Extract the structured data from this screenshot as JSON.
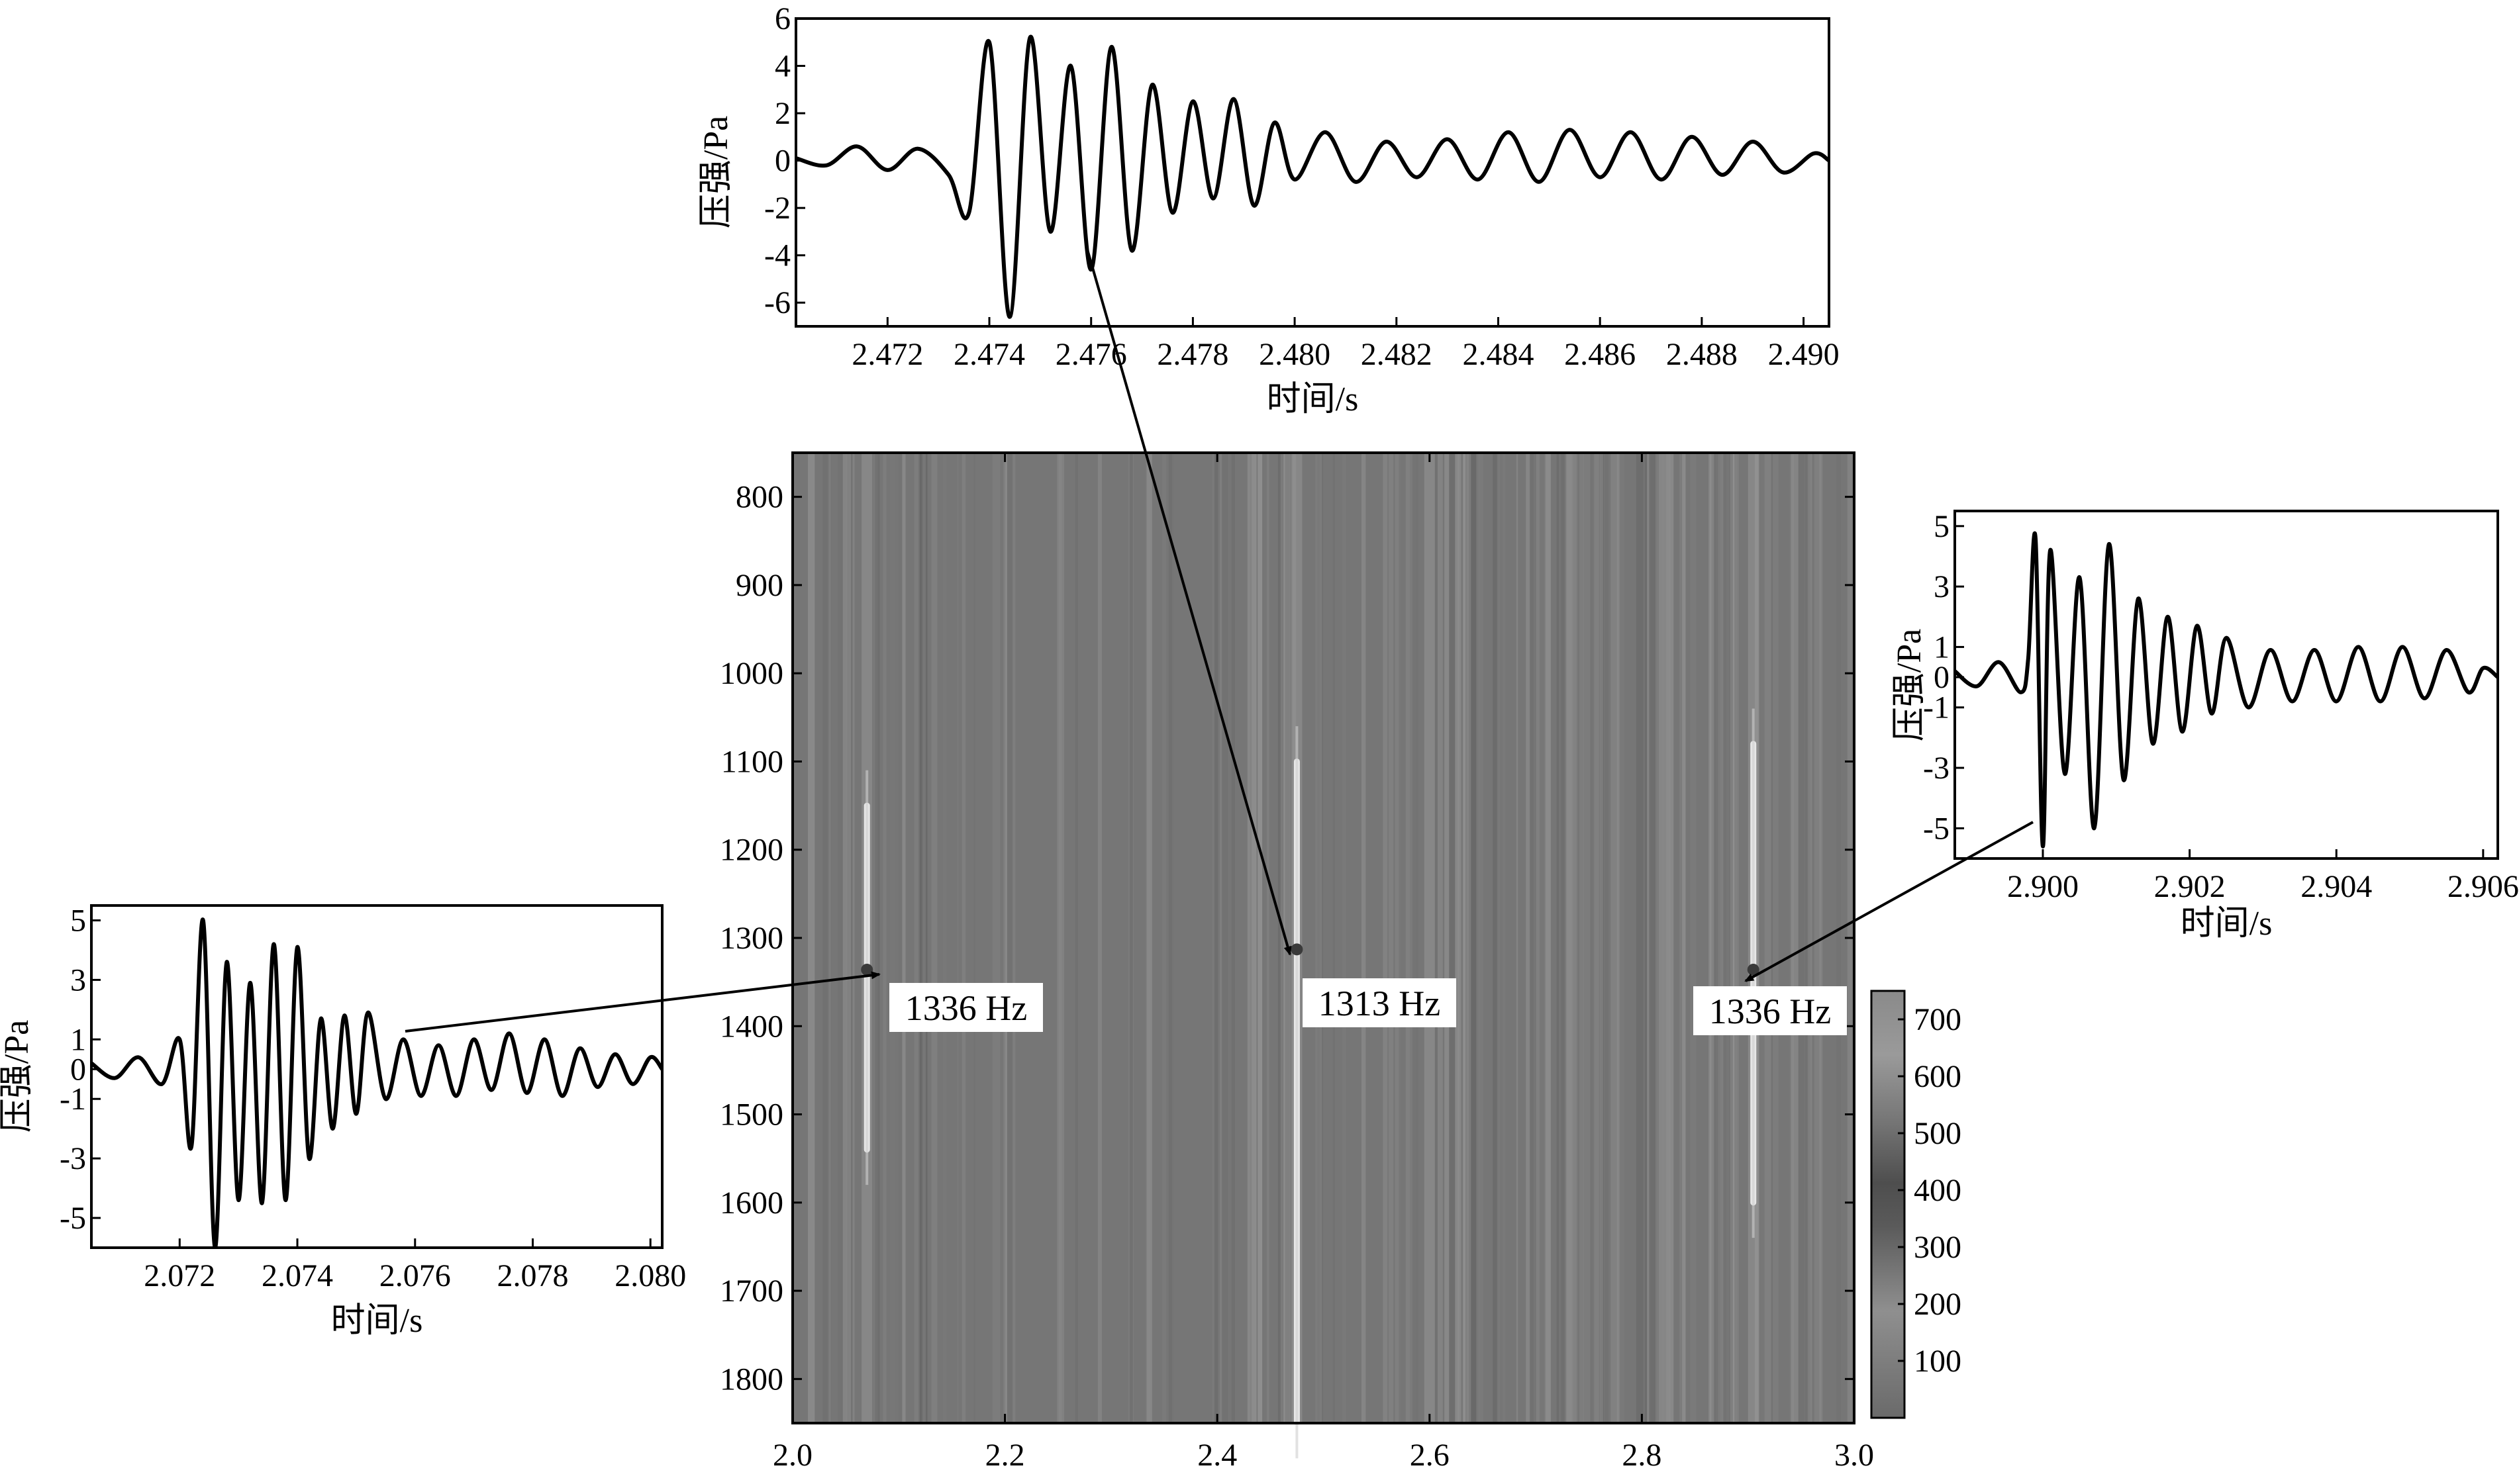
{
  "chart_data": [
    {
      "type": "heatmap",
      "title": "",
      "xlabel": "",
      "ylabel": "",
      "xlim": [
        2.0,
        3.0
      ],
      "ylim": [
        1850,
        750
      ],
      "x_ticks": [
        "2.0",
        "2.2",
        "2.4",
        "2.6",
        "2.8",
        "3.0"
      ],
      "y_ticks": [
        "800",
        "900",
        "1000",
        "1100",
        "1200",
        "1300",
        "1400",
        "1500",
        "1600",
        "1700",
        "1800"
      ],
      "colorbar": {
        "min": 0,
        "max": 750,
        "ticks": [
          "100",
          "200",
          "300",
          "400",
          "500",
          "600",
          "700"
        ]
      },
      "events": [
        {
          "time": 2.07,
          "freq": 1336,
          "label": "1336 Hz"
        },
        {
          "time": 2.475,
          "freq": 1313,
          "label": "1313 Hz"
        },
        {
          "time": 2.905,
          "freq": 1336,
          "label": "1336 Hz"
        }
      ]
    },
    {
      "type": "line",
      "title": "",
      "xlabel": "时间/s",
      "ylabel": "压强/Pa",
      "xlim": [
        2.0705,
        2.0802
      ],
      "ylim": [
        -6,
        5.5
      ],
      "x_ticks": [
        "2.072",
        "2.074",
        "2.076",
        "2.078",
        "2.080"
      ],
      "y_ticks": [
        "5",
        "3",
        "1",
        "0",
        "-1",
        "-3",
        "-5"
      ],
      "series": [
        {
          "x": [
            2.0705,
            2.0709,
            2.0713,
            2.0717,
            2.072,
            2.0722,
            2.0724,
            2.0726,
            2.0728,
            2.073,
            2.0732,
            2.0734,
            2.0736,
            2.0738,
            2.074,
            2.0742,
            2.0744,
            2.0746,
            2.0748,
            2.075,
            2.0752,
            2.0755,
            2.0758,
            2.0761,
            2.0764,
            2.0767,
            2.077,
            2.0773,
            2.0776,
            2.0779,
            2.0782,
            2.0785,
            2.0788,
            2.0791,
            2.0794,
            2.0797,
            2.08,
            2.0802
          ],
          "y": [
            0.2,
            -0.3,
            0.4,
            -0.5,
            1.0,
            -2.6,
            5.0,
            -6.0,
            3.6,
            -4.4,
            2.9,
            -4.5,
            4.2,
            -4.4,
            4.1,
            -3.0,
            1.7,
            -2.0,
            1.8,
            -1.5,
            1.9,
            -1.0,
            1.0,
            -0.9,
            0.8,
            -0.9,
            1.0,
            -0.7,
            1.2,
            -0.8,
            1.0,
            -0.9,
            0.7,
            -0.6,
            0.5,
            -0.5,
            0.4,
            0.0
          ]
        }
      ]
    },
    {
      "type": "line",
      "title": "",
      "xlabel": "时间/s",
      "ylabel": "压强/Pa",
      "xlim": [
        2.4702,
        2.4905
      ],
      "ylim": [
        -7,
        6
      ],
      "x_ticks": [
        "2.472",
        "2.474",
        "2.476",
        "2.478",
        "2.480",
        "2.482",
        "2.484",
        "2.486",
        "2.488",
        "2.490"
      ],
      "y_ticks": [
        "6",
        "4",
        "2",
        "0",
        "-2",
        "-4",
        "-6"
      ],
      "series": [
        {
          "x": [
            2.4702,
            2.4708,
            2.4714,
            2.472,
            2.4726,
            2.4732,
            2.4736,
            2.474,
            2.4744,
            2.4748,
            2.4752,
            2.4756,
            2.476,
            2.4764,
            2.4768,
            2.4772,
            2.4776,
            2.478,
            2.4784,
            2.4788,
            2.4792,
            2.4796,
            2.48,
            2.4806,
            2.4812,
            2.4818,
            2.4824,
            2.483,
            2.4836,
            2.4842,
            2.4848,
            2.4854,
            2.486,
            2.4866,
            2.4872,
            2.4878,
            2.4884,
            2.489,
            2.4896,
            2.4902,
            2.4905
          ],
          "y": [
            0.1,
            -0.2,
            0.6,
            -0.4,
            0.5,
            -0.6,
            -2.2,
            5.0,
            -6.6,
            5.2,
            -3.0,
            4.0,
            -4.6,
            4.8,
            -3.8,
            3.2,
            -2.2,
            2.5,
            -1.6,
            2.6,
            -1.9,
            1.6,
            -0.8,
            1.2,
            -0.9,
            0.8,
            -0.7,
            0.9,
            -0.8,
            1.2,
            -0.9,
            1.3,
            -0.7,
            1.2,
            -0.8,
            1.0,
            -0.6,
            0.8,
            -0.5,
            0.3,
            0.0
          ]
        }
      ]
    },
    {
      "type": "line",
      "title": "",
      "xlabel": "时间/s",
      "ylabel": "压强/Pa",
      "xlim": [
        2.8988,
        2.9062
      ],
      "ylim": [
        -6,
        5.5
      ],
      "x_ticks": [
        "2.900",
        "2.902",
        "2.904",
        "2.906"
      ],
      "y_ticks": [
        "5",
        "3",
        "1",
        "0",
        "-1",
        "-3",
        "-5"
      ],
      "series": [
        {
          "x": [
            2.8988,
            2.8991,
            2.8994,
            2.8997,
            2.8998,
            2.8999,
            2.9,
            2.9001,
            2.9003,
            2.9005,
            2.9007,
            2.9009,
            2.9011,
            2.9013,
            2.9015,
            2.9017,
            2.9019,
            2.9021,
            2.9023,
            2.9025,
            2.9028,
            2.9031,
            2.9034,
            2.9037,
            2.904,
            2.9043,
            2.9046,
            2.9049,
            2.9052,
            2.9055,
            2.9058,
            2.906,
            2.9062
          ],
          "y": [
            0.2,
            -0.3,
            0.5,
            -0.5,
            0.6,
            4.6,
            -5.6,
            4.2,
            -3.2,
            3.3,
            -5.0,
            4.4,
            -3.4,
            2.6,
            -2.2,
            2.0,
            -1.8,
            1.7,
            -1.2,
            1.3,
            -1.0,
            0.9,
            -0.8,
            0.9,
            -0.8,
            1.0,
            -0.8,
            1.0,
            -0.7,
            0.9,
            -0.5,
            0.3,
            0.0
          ]
        }
      ]
    }
  ]
}
